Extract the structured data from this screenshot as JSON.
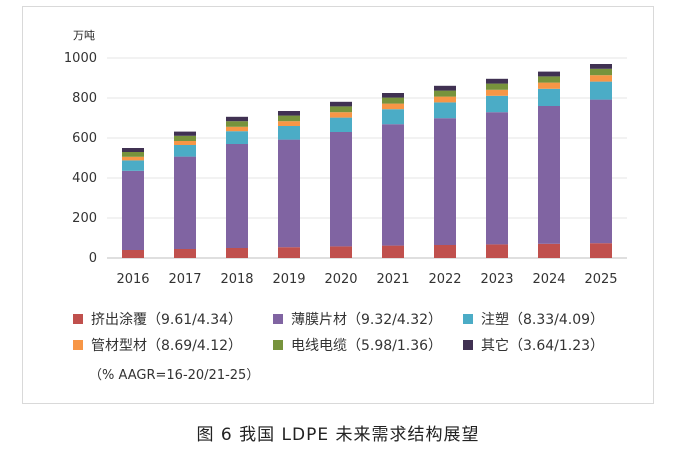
{
  "chart_data": {
    "type": "bar",
    "stacked": true,
    "unit_label": "万吨",
    "categories": [
      "2016",
      "2017",
      "2018",
      "2019",
      "2020",
      "2021",
      "2022",
      "2023",
      "2024",
      "2025"
    ],
    "ylim": [
      0,
      1000
    ],
    "yticks": [
      0,
      200,
      400,
      600,
      800,
      1000
    ],
    "grid": true,
    "series": [
      {
        "name": "挤出涂覆（9.61/4.34）",
        "color": "#c0504d",
        "values": [
          40,
          45,
          50,
          54,
          58,
          62,
          65,
          68,
          71,
          74
        ]
      },
      {
        "name": "薄膜片材（9.32/4.32）",
        "color": "#8064a2",
        "values": [
          396,
          462,
          520,
          538,
          572,
          607,
          634,
          661,
          689,
          718
        ]
      },
      {
        "name": "注塑（8.33/4.09）",
        "color": "#4bacc6",
        "values": [
          52,
          58,
          64,
          68,
          72,
          75,
          79,
          82,
          86,
          90
        ]
      },
      {
        "name": "管材型材（8.69/4.12）",
        "color": "#f79646",
        "values": [
          18,
          20,
          22,
          24,
          27,
          28,
          29,
          30,
          31,
          32
        ]
      },
      {
        "name": "电线电缆（5.98/1.36）",
        "color": "#77933c",
        "values": [
          24,
          26,
          28,
          28,
          29,
          30,
          30,
          31,
          31,
          32
        ]
      },
      {
        "name": "其它（3.64/1.23）",
        "color": "#403152",
        "values": [
          20,
          21,
          22,
          23,
          23,
          23,
          24,
          24,
          24,
          24
        ]
      }
    ],
    "note": "（% AAGR=16-20/21-25）"
  },
  "caption": "图 6  我国 LDPE 未来需求结构展望"
}
